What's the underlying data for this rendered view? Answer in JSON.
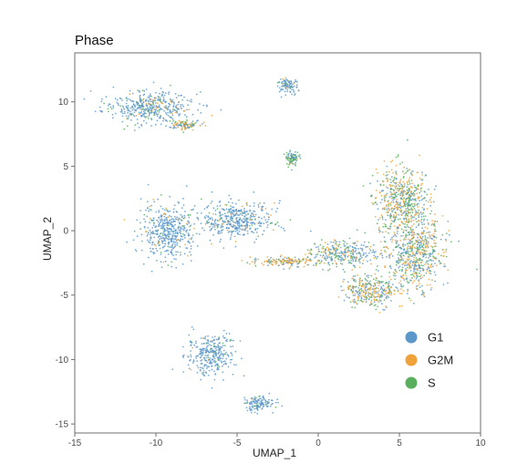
{
  "chart_data": {
    "type": "scatter",
    "title": "Phase",
    "xlabel": "UMAP_1",
    "ylabel": "UMAP_2",
    "xlim": [
      -15,
      10
    ],
    "ylim": [
      -15.7,
      13.8
    ],
    "x_ticks": [
      -15,
      -10,
      -5,
      0,
      5,
      10
    ],
    "y_ticks": [
      -15,
      -10,
      -5,
      0,
      5,
      10
    ],
    "grid": false,
    "legend_position": "bottom-right",
    "series": [
      {
        "name": "G1",
        "color": "#5b97c9"
      },
      {
        "name": "G2M",
        "color": "#efa23a"
      },
      {
        "name": "S",
        "color": "#5aaf5e"
      }
    ],
    "clusters": [
      {
        "center": [
          -10.5,
          9.6
        ],
        "spread": [
          2.5,
          1.1
        ],
        "weights": [
          0.78,
          0.08,
          0.14
        ]
      },
      {
        "center": [
          -8.3,
          8.2
        ],
        "spread": [
          0.9,
          0.35
        ],
        "weights": [
          0.45,
          0.4,
          0.15
        ]
      },
      {
        "center": [
          -1.9,
          11.3
        ],
        "spread": [
          0.6,
          0.5
        ],
        "weights": [
          0.9,
          0.03,
          0.07
        ]
      },
      {
        "center": [
          -1.6,
          5.6
        ],
        "spread": [
          0.4,
          0.5
        ],
        "weights": [
          0.35,
          0.05,
          0.6
        ]
      },
      {
        "center": [
          -9.2,
          -0.1
        ],
        "spread": [
          1.5,
          1.9
        ],
        "weights": [
          0.88,
          0.04,
          0.08
        ]
      },
      {
        "center": [
          -5.0,
          0.8
        ],
        "spread": [
          1.9,
          1.4
        ],
        "weights": [
          0.84,
          0.06,
          0.1
        ]
      },
      {
        "center": [
          -1.9,
          -2.4
        ],
        "spread": [
          2.0,
          0.35
        ],
        "weights": [
          0.15,
          0.65,
          0.2
        ]
      },
      {
        "center": [
          5.2,
          2.3
        ],
        "spread": [
          1.5,
          2.4
        ],
        "weights": [
          0.3,
          0.35,
          0.35
        ]
      },
      {
        "center": [
          6.0,
          -1.8
        ],
        "spread": [
          1.6,
          2.4
        ],
        "weights": [
          0.42,
          0.3,
          0.28
        ]
      },
      {
        "center": [
          3.2,
          -4.7
        ],
        "spread": [
          1.5,
          1.2
        ],
        "weights": [
          0.3,
          0.35,
          0.35
        ]
      },
      {
        "center": [
          -6.6,
          -9.6
        ],
        "spread": [
          1.3,
          1.4
        ],
        "weights": [
          0.9,
          0.03,
          0.07
        ]
      },
      {
        "center": [
          -3.7,
          -13.4
        ],
        "spread": [
          0.9,
          0.55
        ],
        "weights": [
          0.92,
          0.02,
          0.06
        ]
      },
      {
        "center": [
          1.5,
          -1.8
        ],
        "spread": [
          1.8,
          0.9
        ],
        "weights": [
          0.55,
          0.2,
          0.25
        ]
      }
    ]
  }
}
